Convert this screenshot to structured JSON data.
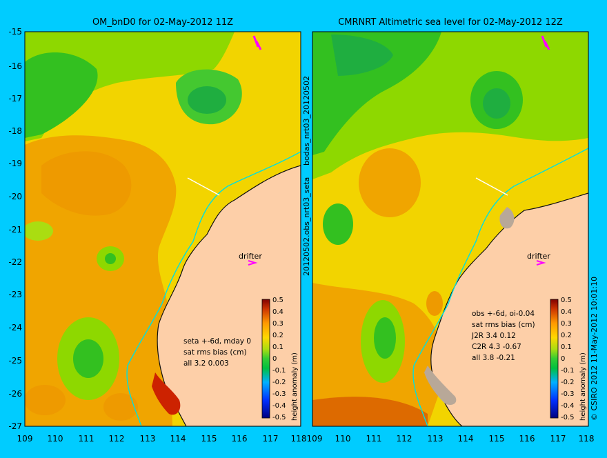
{
  "colors": {
    "background": "#00ccff",
    "land": "#fdcfa8",
    "coast_line": "#111111",
    "drifter_track": "#00e0e0",
    "drifter_marker": "#ff00ff"
  },
  "left_panel": {
    "title": "OM_bnD0 for 02-May-2012 11Z",
    "drifter_label": "drifter",
    "stats": [
      "seta +-6d, mday 0",
      "sat rms bias (cm)",
      "all 3.2 0.003"
    ],
    "colorbar": {
      "label": "height anomaly (m)",
      "ticks": [
        "0.5",
        "0.4",
        "0.3",
        "0.2",
        "0.1",
        "0",
        "-0.1",
        "-0.2",
        "-0.3",
        "-0.4",
        "-0.5"
      ]
    }
  },
  "right_panel": {
    "title": "CMRNRT Altimetric sea level  for 02-May-2012 12Z",
    "drifter_label": "drifter",
    "stats": [
      "obs +-6d, oi-0.04",
      "sat rms bias (cm)",
      "J2R   3.4 0.12",
      "C2R   4.3 -0.67",
      "all 3.8 -0.21"
    ],
    "colorbar": {
      "label": "height anomaly (m)",
      "ticks": [
        "0.5",
        "0.4",
        "0.3",
        "0.2",
        "0.1",
        "0",
        "-0.1",
        "-0.2",
        "-0.3",
        "-0.4",
        "-0.5"
      ]
    }
  },
  "axes": {
    "y_ticks": [
      "-15",
      "-16",
      "-17",
      "-18",
      "-19",
      "-20",
      "-21",
      "-22",
      "-23",
      "-24",
      "-25",
      "-26",
      "-27"
    ],
    "x_ticks": [
      "109",
      "110",
      "111",
      "112",
      "113",
      "114",
      "115",
      "116",
      "117",
      "118"
    ]
  },
  "side_labels": {
    "middle_top": "bodas_nrt03_20120502",
    "middle_bottom": "20120502.obs_nrt03_seta",
    "right": "© CSIRO 2012  11-May-2012 10:01:10"
  }
}
